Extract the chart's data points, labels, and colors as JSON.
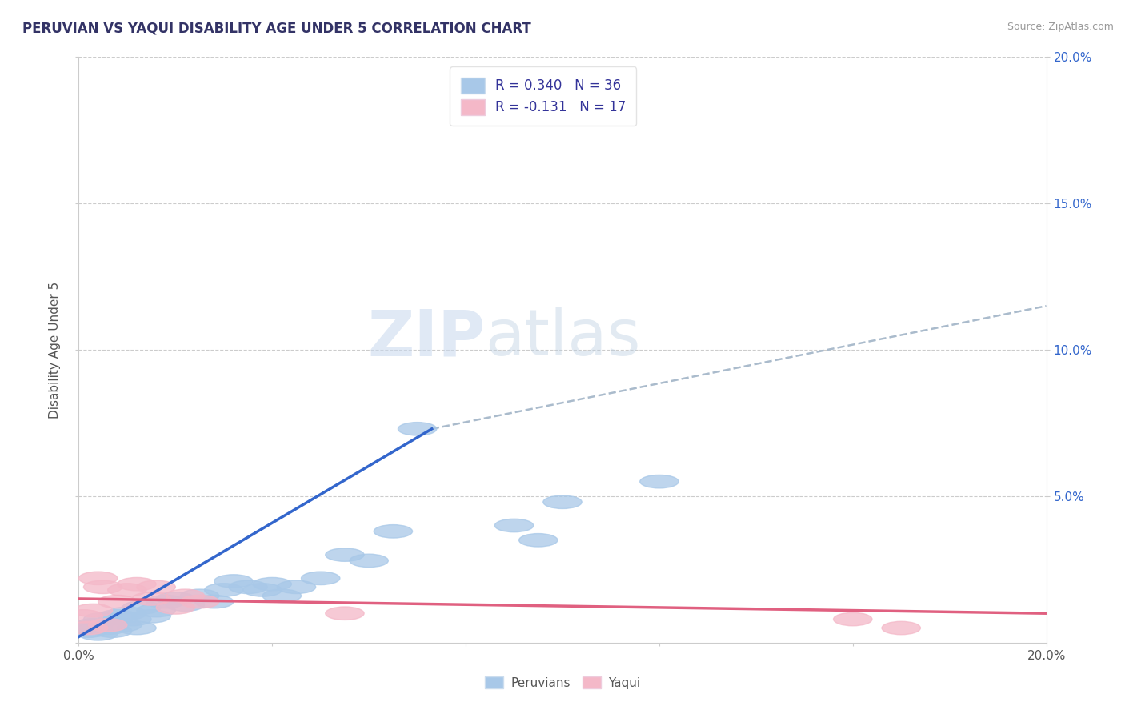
{
  "title": "PERUVIAN VS YAQUI DISABILITY AGE UNDER 5 CORRELATION CHART",
  "source": "Source: ZipAtlas.com",
  "ylabel": "Disability Age Under 5",
  "xlim": [
    0.0,
    0.2
  ],
  "ylim": [
    0.0,
    0.2
  ],
  "background_color": "#ffffff",
  "grid_color": "#cccccc",
  "peruvians_color": "#a8c8e8",
  "yaqui_color": "#f4b8c8",
  "peruvians_line_color": "#3366cc",
  "yaqui_line_color": "#e06080",
  "dashed_line_color": "#aabbcc",
  "r_peruvians": 0.34,
  "n_peruvians": 36,
  "r_yaqui": -0.131,
  "n_yaqui": 17,
  "watermark_zip": "ZIP",
  "watermark_atlas": "atlas",
  "peruvians_x": [
    0.001,
    0.002,
    0.003,
    0.004,
    0.005,
    0.006,
    0.007,
    0.008,
    0.009,
    0.01,
    0.011,
    0.012,
    0.013,
    0.015,
    0.016,
    0.018,
    0.02,
    0.022,
    0.025,
    0.028,
    0.03,
    0.032,
    0.035,
    0.038,
    0.04,
    0.042,
    0.045,
    0.05,
    0.055,
    0.06,
    0.065,
    0.07,
    0.09,
    0.095,
    0.1,
    0.12
  ],
  "peruvians_y": [
    0.005,
    0.004,
    0.006,
    0.003,
    0.008,
    0.005,
    0.004,
    0.009,
    0.006,
    0.01,
    0.008,
    0.005,
    0.012,
    0.009,
    0.011,
    0.014,
    0.015,
    0.013,
    0.016,
    0.014,
    0.018,
    0.021,
    0.019,
    0.018,
    0.02,
    0.016,
    0.019,
    0.022,
    0.03,
    0.028,
    0.038,
    0.073,
    0.04,
    0.035,
    0.048,
    0.055
  ],
  "yaqui_x": [
    0.001,
    0.002,
    0.003,
    0.004,
    0.005,
    0.006,
    0.008,
    0.01,
    0.012,
    0.015,
    0.016,
    0.02,
    0.022,
    0.025,
    0.055,
    0.16,
    0.17
  ],
  "yaqui_y": [
    0.009,
    0.005,
    0.011,
    0.022,
    0.019,
    0.006,
    0.014,
    0.018,
    0.02,
    0.015,
    0.019,
    0.012,
    0.016,
    0.014,
    0.01,
    0.008,
    0.005
  ],
  "blue_line_x_start": 0.0,
  "blue_line_x_end": 0.073,
  "blue_line_y_start": 0.002,
  "blue_line_y_end": 0.073,
  "dashed_line_x_start": 0.073,
  "dashed_line_x_end": 0.2,
  "dashed_line_y_start": 0.073,
  "dashed_line_y_end": 0.115,
  "pink_line_x_start": 0.0,
  "pink_line_x_end": 0.2,
  "pink_line_y_start": 0.015,
  "pink_line_y_end": 0.01
}
